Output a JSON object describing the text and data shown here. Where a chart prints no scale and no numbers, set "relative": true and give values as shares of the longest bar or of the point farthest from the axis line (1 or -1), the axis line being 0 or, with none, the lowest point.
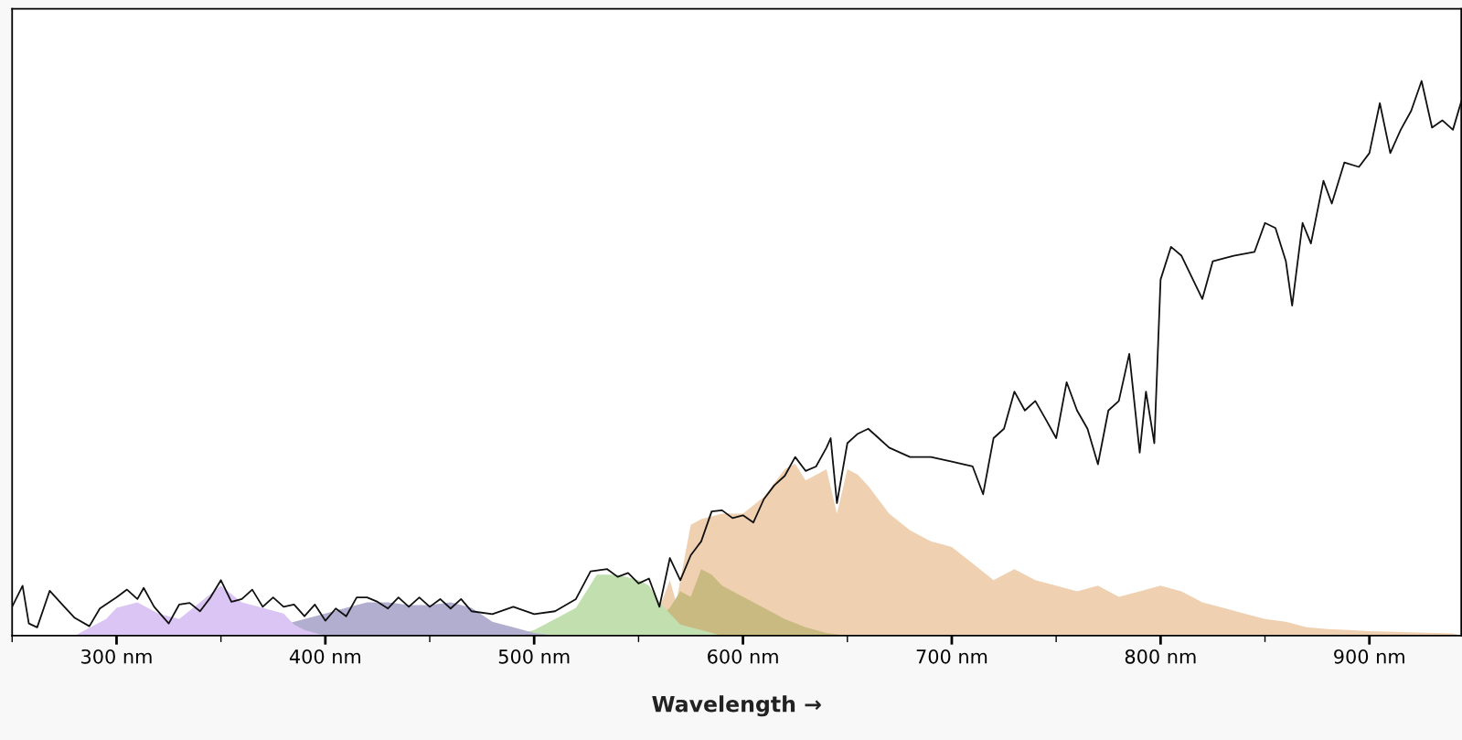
{
  "chart_data": {
    "type": "area",
    "relative": true,
    "xlabel": "Wavelength →",
    "xlim": [
      250,
      944
    ],
    "xticks": [
      {
        "value": 250,
        "label": null
      },
      {
        "value": 300,
        "label": "300 nm"
      },
      {
        "value": 350,
        "label": null
      },
      {
        "value": 400,
        "label": "400 nm"
      },
      {
        "value": 450,
        "label": null
      },
      {
        "value": 500,
        "label": "500 nm"
      },
      {
        "value": 550,
        "label": null
      },
      {
        "value": 600,
        "label": "600 nm"
      },
      {
        "value": 650,
        "label": null
      },
      {
        "value": 700,
        "label": "700 nm"
      },
      {
        "value": 750,
        "label": null
      },
      {
        "value": 800,
        "label": "800 nm"
      },
      {
        "value": 850,
        "label": null
      },
      {
        "value": 900,
        "label": "900 nm"
      }
    ],
    "grid": false,
    "legend": false,
    "series": [
      {
        "color": "#efd0b0",
        "x": [
          555,
          565,
          568,
          575,
          580,
          590,
          600,
          610,
          620,
          625,
          630,
          640,
          645,
          650,
          655,
          660,
          670,
          680,
          690,
          700,
          710,
          720,
          730,
          740,
          750,
          760,
          770,
          780,
          790,
          800,
          810,
          820,
          830,
          840,
          850,
          860,
          870,
          880,
          890,
          900,
          920,
          940,
          944
        ],
        "values": [
          0,
          0.1,
          0.06,
          0.2,
          0.21,
          0.22,
          0.22,
          0.25,
          0.3,
          0.31,
          0.28,
          0.3,
          0.22,
          0.3,
          0.29,
          0.27,
          0.22,
          0.19,
          0.17,
          0.16,
          0.13,
          0.1,
          0.12,
          0.1,
          0.09,
          0.08,
          0.09,
          0.07,
          0.08,
          0.09,
          0.08,
          0.06,
          0.05,
          0.04,
          0.03,
          0.025,
          0.015,
          0.012,
          0.01,
          0.008,
          0.006,
          0.004,
          0
        ]
      },
      {
        "color": "#c8ba80",
        "x": [
          550,
          565,
          570,
          575,
          580,
          585,
          590,
          600,
          610,
          620,
          630,
          640,
          650
        ],
        "values": [
          0,
          0.05,
          0.08,
          0.07,
          0.12,
          0.11,
          0.09,
          0.07,
          0.05,
          0.03,
          0.015,
          0.005,
          0
        ]
      },
      {
        "color": "#c2dfb0",
        "x": [
          490,
          500,
          510,
          520,
          525,
          530,
          540,
          550,
          555,
          560,
          565,
          570,
          580,
          590
        ],
        "values": [
          0,
          0.01,
          0.03,
          0.05,
          0.08,
          0.11,
          0.11,
          0.1,
          0.09,
          0.06,
          0.04,
          0.02,
          0.01,
          0
        ]
      },
      {
        "color": "#b1aed0",
        "x": [
          360,
          390,
          400,
          410,
          420,
          430,
          440,
          450,
          460,
          470,
          480,
          490,
          500,
          510
        ],
        "values": [
          0,
          0.03,
          0.04,
          0.05,
          0.06,
          0.06,
          0.055,
          0.055,
          0.06,
          0.05,
          0.025,
          0.015,
          0.005,
          0
        ]
      },
      {
        "color": "#dbc5f4",
        "x": [
          280,
          285,
          295,
          300,
          310,
          320,
          330,
          340,
          350,
          360,
          370,
          380,
          385,
          390,
          400
        ],
        "values": [
          0,
          0.01,
          0.03,
          0.05,
          0.06,
          0.04,
          0.03,
          0.06,
          0.09,
          0.06,
          0.05,
          0.04,
          0.02,
          0.01,
          0
        ]
      },
      {
        "type": "line",
        "color": "#111111",
        "x": [
          250,
          255,
          258,
          262,
          268,
          275,
          280,
          287,
          292,
          300,
          305,
          310,
          313,
          318,
          325,
          330,
          335,
          340,
          345,
          350,
          355,
          360,
          365,
          370,
          375,
          380,
          385,
          390,
          395,
          400,
          405,
          410,
          415,
          420,
          425,
          430,
          435,
          440,
          445,
          450,
          455,
          460,
          465,
          470,
          480,
          490,
          500,
          510,
          520,
          527,
          535,
          540,
          545,
          550,
          555,
          560,
          565,
          570,
          575,
          580,
          585,
          590,
          595,
          600,
          605,
          610,
          615,
          620,
          625,
          630,
          635,
          640,
          642,
          645,
          650,
          655,
          660,
          665,
          670,
          680,
          690,
          700,
          710,
          715,
          720,
          725,
          730,
          735,
          740,
          745,
          750,
          755,
          760,
          765,
          770,
          775,
          780,
          785,
          790,
          793,
          797,
          800,
          805,
          810,
          820,
          825,
          835,
          845,
          850,
          855,
          860,
          863,
          868,
          872,
          878,
          882,
          888,
          895,
          900,
          905,
          910,
          915,
          920,
          925,
          930,
          935,
          940,
          944
        ],
        "values": [
          0.052,
          0.09,
          0.022,
          0.015,
          0.081,
          0.052,
          0.032,
          0.017,
          0.049,
          0.069,
          0.083,
          0.066,
          0.086,
          0.052,
          0.022,
          0.056,
          0.059,
          0.044,
          0.069,
          0.1,
          0.061,
          0.066,
          0.083,
          0.052,
          0.069,
          0.052,
          0.056,
          0.035,
          0.056,
          0.027,
          0.049,
          0.035,
          0.069,
          0.069,
          0.061,
          0.049,
          0.069,
          0.052,
          0.069,
          0.052,
          0.066,
          0.049,
          0.066,
          0.044,
          0.039,
          0.052,
          0.039,
          0.044,
          0.066,
          0.116,
          0.12,
          0.106,
          0.113,
          0.094,
          0.103,
          0.052,
          0.14,
          0.1,
          0.145,
          0.17,
          0.224,
          0.226,
          0.212,
          0.217,
          0.204,
          0.246,
          0.271,
          0.288,
          0.322,
          0.297,
          0.305,
          0.339,
          0.356,
          0.239,
          0.347,
          0.364,
          0.373,
          0.356,
          0.339,
          0.322,
          0.322,
          0.314,
          0.305,
          0.255,
          0.356,
          0.373,
          0.44,
          0.406,
          0.423,
          0.39,
          0.356,
          0.457,
          0.406,
          0.373,
          0.309,
          0.406,
          0.423,
          0.508,
          0.33,
          0.44,
          0.347,
          0.642,
          0.701,
          0.685,
          0.607,
          0.675,
          0.685,
          0.692,
          0.744,
          0.735,
          0.675,
          0.595,
          0.744,
          0.707,
          0.82,
          0.779,
          0.853,
          0.845,
          0.87,
          0.96,
          0.87,
          0.912,
          0.946,
          1,
          0.916,
          0.929,
          0.912,
          0.963
        ]
      }
    ]
  }
}
